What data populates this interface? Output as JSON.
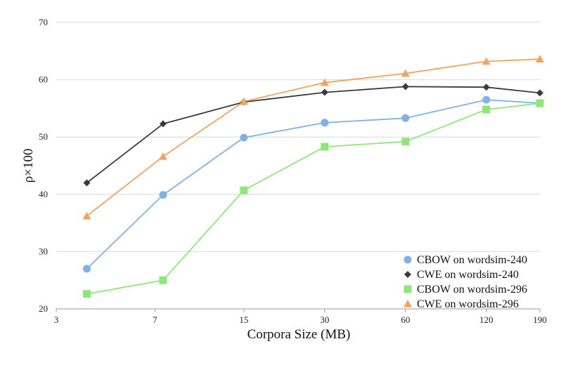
{
  "chart_data": {
    "type": "line",
    "title": "",
    "xlabel": "Corpora Size (MB)",
    "ylabel": "ρ×100",
    "x_tick_labels": [
      "3",
      "7",
      "15",
      "30",
      "60",
      "120",
      "190"
    ],
    "x_scale": "log",
    "y_ticks": [
      20,
      30,
      40,
      50,
      60,
      70
    ],
    "ylim": [
      20,
      70
    ],
    "grid": "horizontal",
    "legend_position": "bottom-right",
    "x": [
      3.9,
      7.5,
      15,
      30,
      60,
      120,
      190
    ],
    "series": [
      {
        "name": "CBOW on wordsim-240",
        "color": "#7fb3e6",
        "marker": "circle",
        "values": [
          27,
          39.9,
          49.9,
          52.5,
          53.3,
          56.5,
          55.9
        ]
      },
      {
        "name": "CWE on wordsim-240",
        "color": "#3a3a3a",
        "marker": "diamond",
        "values": [
          42,
          52.3,
          56.1,
          57.8,
          58.8,
          58.7,
          57.7
        ]
      },
      {
        "name": "CBOW on wordsim-296",
        "color": "#8ee878",
        "marker": "square",
        "values": [
          22.6,
          25,
          40.7,
          48.3,
          49.2,
          54.8,
          55.9
        ]
      },
      {
        "name": "CWE on wordsim-296",
        "color": "#f2a35e",
        "marker": "triangle",
        "values": [
          36.2,
          46.6,
          56.2,
          59.5,
          61.1,
          63.2,
          63.6
        ]
      }
    ]
  }
}
